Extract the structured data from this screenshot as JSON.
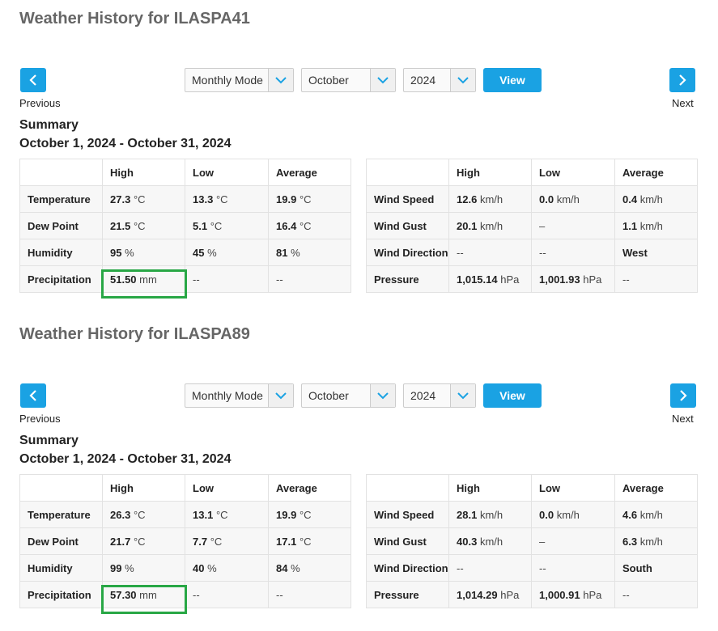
{
  "sections": [
    {
      "title": "Weather History for ILASPA41",
      "mode": "Monthly Mode",
      "month": "October",
      "year": "2024",
      "view_label": "View",
      "previous_label": "Previous",
      "next_label": "Next",
      "summary_label": "Summary",
      "date_range": "October 1, 2024 - October 31, 2024",
      "left_table": {
        "headers": [
          "",
          "High",
          "Low",
          "Average"
        ],
        "rows": [
          {
            "label": "Temperature",
            "cells": [
              {
                "v": "27.3",
                "u": "°C"
              },
              {
                "v": "13.3",
                "u": "°C"
              },
              {
                "v": "19.9",
                "u": "°C"
              }
            ]
          },
          {
            "label": "Dew Point",
            "cells": [
              {
                "v": "21.5",
                "u": "°C"
              },
              {
                "v": "5.1",
                "u": "°C"
              },
              {
                "v": "16.4",
                "u": "°C"
              }
            ]
          },
          {
            "label": "Humidity",
            "cells": [
              {
                "v": "95",
                "u": "%"
              },
              {
                "v": "45",
                "u": "%"
              },
              {
                "v": "81",
                "u": "%"
              }
            ]
          },
          {
            "label": "Precipitation",
            "cells": [
              {
                "v": "51.50",
                "u": "mm"
              },
              {
                "v": "",
                "u": "--"
              },
              {
                "v": "",
                "u": "--"
              }
            ]
          }
        ]
      },
      "right_table": {
        "headers": [
          "",
          "High",
          "Low",
          "Average"
        ],
        "rows": [
          {
            "label": "Wind Speed",
            "cells": [
              {
                "v": "12.6",
                "u": "km/h"
              },
              {
                "v": "0.0",
                "u": "km/h"
              },
              {
                "v": "0.4",
                "u": "km/h"
              }
            ]
          },
          {
            "label": "Wind Gust",
            "cells": [
              {
                "v": "20.1",
                "u": "km/h"
              },
              {
                "v": "",
                "u": "–"
              },
              {
                "v": "1.1",
                "u": "km/h"
              }
            ]
          },
          {
            "label": "Wind Direction",
            "cells": [
              {
                "v": "",
                "u": "--"
              },
              {
                "v": "",
                "u": "--"
              },
              {
                "v": "West",
                "u": ""
              }
            ]
          },
          {
            "label": "Pressure",
            "cells": [
              {
                "v": "1,015.14",
                "u": "hPa"
              },
              {
                "v": "1,001.93",
                "u": "hPa"
              },
              {
                "v": "",
                "u": "--"
              }
            ]
          }
        ]
      }
    },
    {
      "title": "Weather History for ILASPA89",
      "mode": "Monthly Mode",
      "month": "October",
      "year": "2024",
      "view_label": "View",
      "previous_label": "Previous",
      "next_label": "Next",
      "summary_label": "Summary",
      "date_range": "October 1, 2024 - October 31, 2024",
      "left_table": {
        "headers": [
          "",
          "High",
          "Low",
          "Average"
        ],
        "rows": [
          {
            "label": "Temperature",
            "cells": [
              {
                "v": "26.3",
                "u": "°C"
              },
              {
                "v": "13.1",
                "u": "°C"
              },
              {
                "v": "19.9",
                "u": "°C"
              }
            ]
          },
          {
            "label": "Dew Point",
            "cells": [
              {
                "v": "21.7",
                "u": "°C"
              },
              {
                "v": "7.7",
                "u": "°C"
              },
              {
                "v": "17.1",
                "u": "°C"
              }
            ]
          },
          {
            "label": "Humidity",
            "cells": [
              {
                "v": "99",
                "u": "%"
              },
              {
                "v": "40",
                "u": "%"
              },
              {
                "v": "84",
                "u": "%"
              }
            ]
          },
          {
            "label": "Precipitation",
            "cells": [
              {
                "v": "57.30",
                "u": "mm"
              },
              {
                "v": "",
                "u": "--"
              },
              {
                "v": "",
                "u": "--"
              }
            ]
          }
        ]
      },
      "right_table": {
        "headers": [
          "",
          "High",
          "Low",
          "Average"
        ],
        "rows": [
          {
            "label": "Wind Speed",
            "cells": [
              {
                "v": "28.1",
                "u": "km/h"
              },
              {
                "v": "0.0",
                "u": "km/h"
              },
              {
                "v": "4.6",
                "u": "km/h"
              }
            ]
          },
          {
            "label": "Wind Gust",
            "cells": [
              {
                "v": "40.3",
                "u": "km/h"
              },
              {
                "v": "",
                "u": "–"
              },
              {
                "v": "6.3",
                "u": "km/h"
              }
            ]
          },
          {
            "label": "Wind Direction",
            "cells": [
              {
                "v": "",
                "u": "--"
              },
              {
                "v": "",
                "u": "--"
              },
              {
                "v": "South",
                "u": ""
              }
            ]
          },
          {
            "label": "Pressure",
            "cells": [
              {
                "v": "1,014.29",
                "u": "hPa"
              },
              {
                "v": "1,000.91",
                "u": "hPa"
              },
              {
                "v": "",
                "u": "--"
              }
            ]
          }
        ]
      }
    }
  ],
  "colors": {
    "accent": "#1aa2e3",
    "highlight": "#28a745",
    "title": "#666666"
  },
  "icons": {
    "prev": "chevron-left-icon",
    "next": "chevron-right-icon",
    "dropdown": "chevron-down-icon"
  }
}
